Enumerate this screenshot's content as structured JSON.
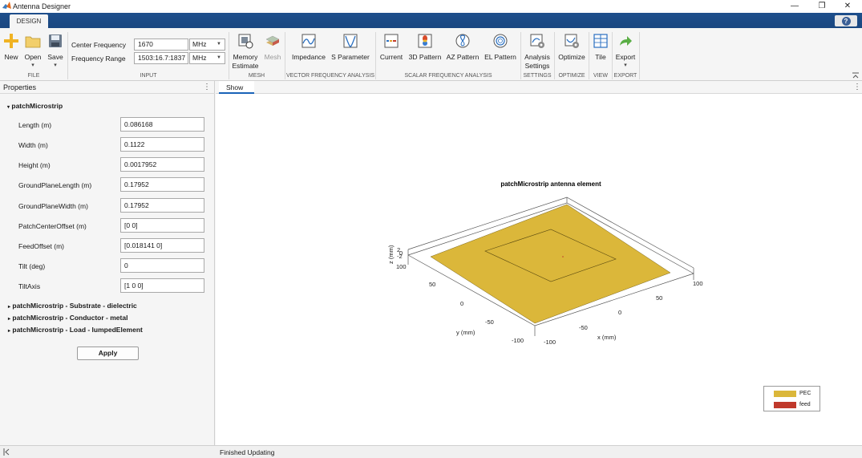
{
  "window": {
    "title": "Antenna Designer",
    "minimize": "—",
    "restore": "❐",
    "close": "✕"
  },
  "ribbon": {
    "tab": "DESIGN",
    "help": "?"
  },
  "toolstrip": {
    "file": {
      "group": "FILE",
      "new": "New",
      "open": "Open",
      "save": "Save",
      "dropdown": "▾"
    },
    "input": {
      "group": "INPUT",
      "center_frequency_label": "Center Frequency",
      "center_frequency_value": "1670",
      "center_frequency_unit": "MHz",
      "frequency_range_label": "Frequency Range",
      "frequency_range_value": "1503:16.7:1837",
      "frequency_range_unit": "MHz"
    },
    "mesh": {
      "group": "MESH",
      "memory_estimate_1": "Memory",
      "memory_estimate_2": "Estimate",
      "mesh": "Mesh"
    },
    "vector": {
      "group": "VECTOR FREQUENCY ANALYSIS",
      "impedance": "Impedance",
      "s_parameter": "S Parameter"
    },
    "scalar": {
      "group": "SCALAR FREQUENCY ANALYSIS",
      "current": "Current",
      "pattern_3d": "3D Pattern",
      "az_pattern": "AZ Pattern",
      "el_pattern": "EL Pattern"
    },
    "settings": {
      "group": "SETTINGS",
      "analysis_1": "Analysis",
      "analysis_2": "Settings"
    },
    "optimize": {
      "group": "OPTIMIZE",
      "optimize": "Optimize"
    },
    "view": {
      "group": "VIEW",
      "tile": "Tile"
    },
    "export": {
      "group": "EXPORT",
      "export": "Export"
    }
  },
  "properties": {
    "title": "Properties",
    "element": "patchMicrostrip",
    "fields": [
      {
        "label": "Length (m)",
        "value": "0.086168"
      },
      {
        "label": "Width (m)",
        "value": "0.1122"
      },
      {
        "label": "Height (m)",
        "value": "0.0017952"
      },
      {
        "label": "GroundPlaneLength (m)",
        "value": "0.17952"
      },
      {
        "label": "GroundPlaneWidth (m)",
        "value": "0.17952"
      },
      {
        "label": "PatchCenterOffset (m)",
        "value": "[0 0]"
      },
      {
        "label": "FeedOffset (m)",
        "value": "[0.018141 0]"
      },
      {
        "label": "Tilt (deg)",
        "value": "0"
      },
      {
        "label": "TiltAxis",
        "value": "[1 0 0]"
      }
    ],
    "sections": [
      "patchMicrostrip - Substrate - dielectric",
      "patchMicrostrip - Conductor - metal",
      "patchMicrostrip - Load - lumpedElement"
    ],
    "apply": "Apply"
  },
  "document": {
    "tab": "Show"
  },
  "status": {
    "text": "Finished Updating"
  },
  "chart_data": {
    "type": "3d-surface",
    "title": "patchMicrostrip antenna element",
    "xlabel": "x (mm)",
    "ylabel": "y (mm)",
    "zlabel": "z (mm)",
    "x_ticks": [
      "-100",
      "-50",
      "0",
      "50",
      "100"
    ],
    "y_ticks": [
      "-100",
      "-50",
      "0",
      "50",
      "100"
    ],
    "z_ticks": [
      "2",
      "0",
      "-2"
    ],
    "series": [
      {
        "name": "PEC",
        "color": "#dbb73a"
      },
      {
        "name": "feed",
        "color": "#c0392b"
      }
    ],
    "legend_position": "bottom-right"
  }
}
